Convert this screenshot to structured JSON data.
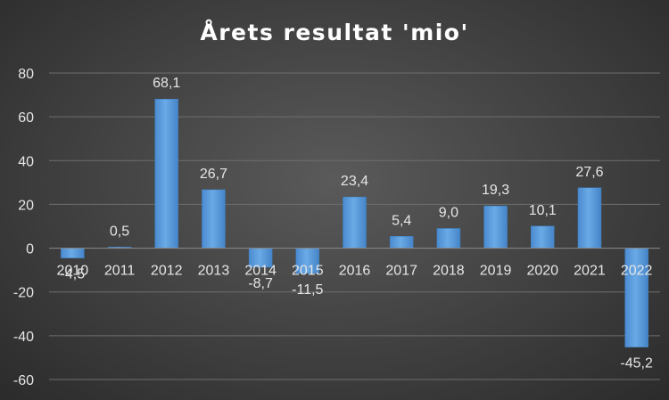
{
  "chart_data": {
    "type": "bar",
    "title": "Årets resultat 'mio'",
    "categories": [
      "2010",
      "2011",
      "2012",
      "2013",
      "2014",
      "2015",
      "2016",
      "2017",
      "2018",
      "2019",
      "2020",
      "2021",
      "2022"
    ],
    "values": [
      -4.5,
      0.5,
      68.1,
      26.7,
      -8.7,
      -11.5,
      23.4,
      5.4,
      9.0,
      19.3,
      10.1,
      27.6,
      -45.2
    ],
    "value_labels": [
      "-4,5",
      "0,5",
      "68,1",
      "26,7",
      "-8,7",
      "-11,5",
      "23,4",
      "5,4",
      "9,0",
      "19,3",
      "10,1",
      "27,6",
      "-45,2"
    ],
    "ylim": [
      -60,
      80
    ],
    "yticks": [
      80,
      60,
      40,
      20,
      0,
      -20,
      -40,
      -60
    ],
    "grid": true,
    "bar_color": "#5b9bd5",
    "bar_color_light": "#6aaae6",
    "bar_color_dark": "#3f7fbf"
  }
}
